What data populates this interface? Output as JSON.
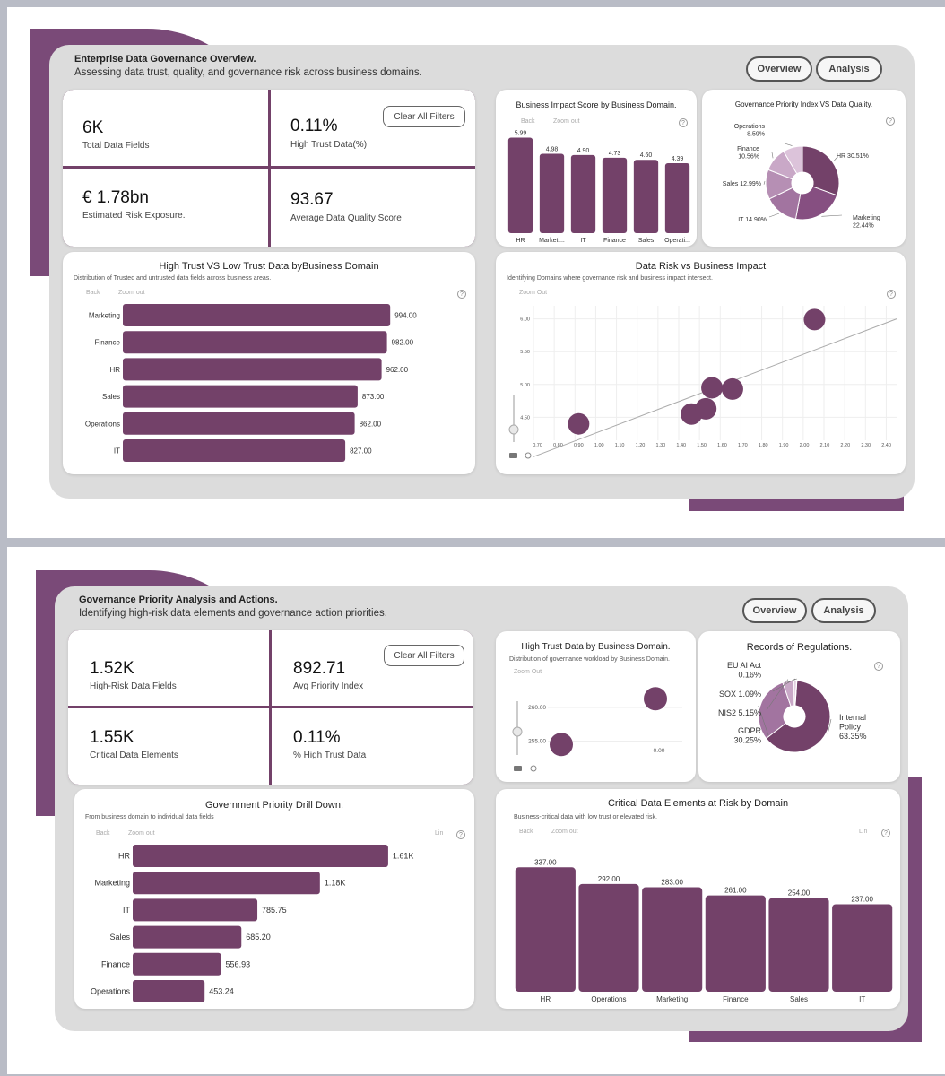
{
  "overview": {
    "title": "Enterprise Data Governance Overview.",
    "subtitle": "Assessing data trust, quality, and governance risk across business domains.",
    "nav": {
      "overview": "Overview",
      "analysis": "Analysis"
    },
    "clear_filters": "Clear All Filters",
    "kpis": [
      {
        "value": "6K",
        "label": "Total Data Fields"
      },
      {
        "value": "0.11%",
        "label": "High Trust Data(%)"
      },
      {
        "value": "€ 1.78bn",
        "label": "Estimated Risk Exposure."
      },
      {
        "value": "93.67",
        "label": "Average Data Quality Score"
      }
    ],
    "toolbar": {
      "back": "Back",
      "zoom_out": "Zoom out",
      "zoom_out_caps": "Zoom Out",
      "help": "?"
    }
  },
  "analysis": {
    "title": "Governance Priority Analysis and Actions.",
    "subtitle": "Identifying high-risk data elements and governance action priorities.",
    "nav": {
      "overview": "Overview",
      "analysis": "Analysis"
    },
    "clear_filters": "Clear All Filters",
    "kpis": [
      {
        "value": "1.52K",
        "label": "High-Risk Data Fields"
      },
      {
        "value": "892.71",
        "label": "Avg Priority Index"
      },
      {
        "value": "1.55K",
        "label": "Critical Data Elements"
      },
      {
        "value": "0.11%",
        "label": "% High Trust Data"
      }
    ],
    "toolbar": {
      "back": "Back",
      "zoom_out": "Zoom out",
      "zoom_out_caps": "Zoom Out",
      "lin": "Lin",
      "help": "?"
    }
  },
  "colors": {
    "accent": "#734169",
    "accent_light": "#a274a0",
    "accent_lighter": "#c9a8c7",
    "panel": "#dcdcdc"
  },
  "chart_data": [
    {
      "id": "business-impact",
      "type": "bar",
      "title": "Business Impact Score by Business Domain.",
      "categories": [
        "HR",
        "Marketi...",
        "IT",
        "Finance",
        "Sales",
        "Operati..."
      ],
      "values": [
        5.99,
        4.98,
        4.9,
        4.73,
        4.6,
        4.39
      ],
      "labels": [
        "5.99",
        "4.98",
        "4.90",
        "4.73",
        "4.60",
        "4.39"
      ],
      "ylim": [
        0,
        6.3
      ]
    },
    {
      "id": "governance-priority",
      "type": "pie",
      "title": "Governance Priority Index VS Data Quality.",
      "slices": [
        {
          "name": "HR",
          "value": 30.51,
          "label": "HR 30.51%",
          "color": "#734169"
        },
        {
          "name": "Marketing",
          "value": 22.44,
          "label1": "Marketing",
          "label2": "22.44%",
          "color": "#864f81"
        },
        {
          "name": "IT",
          "value": 14.9,
          "label": "IT 14.90%",
          "color": "#a274a0"
        },
        {
          "name": "Sales",
          "value": 12.99,
          "label": "Sales 12.99%",
          "color": "#b68fb4"
        },
        {
          "name": "Finance",
          "value": 10.56,
          "label1": "Finance",
          "label2": "10.56%",
          "color": "#c9a8c7"
        },
        {
          "name": "Operations",
          "value": 8.59,
          "label1": "Operations",
          "label2": "8.59%",
          "color": "#dcc3da"
        }
      ]
    },
    {
      "id": "high-low-trust",
      "type": "bar",
      "orientation": "horizontal",
      "title": "High Trust VS Low Trust Data byBusiness Domain",
      "subtitle": "Distribution of Trusted and untrusted data fields across business areas.",
      "categories": [
        "Marketing",
        "Finance",
        "HR",
        "Sales",
        "Operations",
        "IT"
      ],
      "values": [
        994,
        982,
        962,
        873,
        862,
        827
      ],
      "labels": [
        "994.00",
        "982.00",
        "962.00",
        "873.00",
        "862.00",
        "827.00"
      ],
      "xlim": [
        0,
        1000
      ]
    },
    {
      "id": "risk-vs-impact",
      "type": "scatter",
      "title": "Data Risk vs Business Impact",
      "subtitle": "Identifying Domains where governance risk and business impact intersect.",
      "x": [
        0.9,
        1.45,
        1.52,
        1.55,
        1.65,
        2.05
      ],
      "y": [
        4.4,
        4.55,
        4.63,
        4.95,
        4.93,
        5.99
      ],
      "xticks": [
        "0.70",
        "0.80",
        "0.90",
        "1.00",
        "1.10",
        "1.20",
        "1.30",
        "1.40",
        "1.50",
        "1.60",
        "1.70",
        "1.80",
        "1.90",
        "2.00",
        "2.10",
        "2.20",
        "2.30",
        "2.40"
      ],
      "yticks": [
        "4.50",
        "5.00",
        "5.50",
        "6.00"
      ],
      "xlim": [
        0.68,
        2.45
      ],
      "ylim": [
        4.15,
        6.2
      ],
      "trendline": [
        [
          0.68,
          3.9
        ],
        [
          2.45,
          6.0
        ]
      ]
    },
    {
      "id": "high-trust-by-domain",
      "type": "scatter",
      "title": "High Trust Data by Business Domain.",
      "subtitle": "Distribution of governance workload by Business Domain.",
      "x": [
        0.2,
        1.6
      ],
      "y": [
        254.5,
        261.3
      ],
      "yticks": [
        "255.00",
        "260.00"
      ],
      "xticks": [
        "0.00"
      ],
      "xlim": [
        0,
        2
      ],
      "ylim": [
        252,
        264
      ]
    },
    {
      "id": "records-of-regulations",
      "type": "pie",
      "title": "Records of Regulations.",
      "slices": [
        {
          "name": "Internal Policy",
          "value": 63.35,
          "label1": "Internal",
          "label2": "Policy",
          "label3": "63.35%",
          "color": "#734169"
        },
        {
          "name": "GDPR",
          "value": 30.25,
          "label1": "GDPR",
          "label2": "30.25%",
          "color": "#a274a0"
        },
        {
          "name": "NIS2",
          "value": 5.15,
          "label": "NIS2 5.15%",
          "color": "#c9a8c7"
        },
        {
          "name": "SOX",
          "value": 1.09,
          "label": "SOX 1.09%",
          "color": "#dcc3da"
        },
        {
          "name": "EU AI Act",
          "value": 0.16,
          "label1": "EU AI Act",
          "label2": "0.16%",
          "color": "#eadcea"
        }
      ]
    },
    {
      "id": "priority-drill-down",
      "type": "bar",
      "orientation": "horizontal",
      "title": "Government Priority Drill Down.",
      "subtitle": "From business domain to individual data fields",
      "categories": [
        "HR",
        "Marketing",
        "IT",
        "Sales",
        "Finance",
        "Operations"
      ],
      "values": [
        1610,
        1180,
        785.75,
        685.2,
        556.93,
        453.24
      ],
      "labels": [
        "1.61K",
        "1.18K",
        "785.75",
        "685.20",
        "556.93",
        "453.24"
      ],
      "xlim": [
        0,
        1650
      ]
    },
    {
      "id": "critical-at-risk",
      "type": "bar",
      "title": "Critical Data Elements at Risk by Domain",
      "subtitle": "Business-critical data with low trust or elevated risk.",
      "categories": [
        "HR",
        "Operations",
        "Marketing",
        "Finance",
        "Sales",
        "IT"
      ],
      "values": [
        337,
        292,
        283,
        261,
        254,
        237
      ],
      "labels": [
        "337.00",
        "292.00",
        "283.00",
        "261.00",
        "254.00",
        "237.00"
      ],
      "ylim": [
        0,
        345
      ]
    }
  ]
}
